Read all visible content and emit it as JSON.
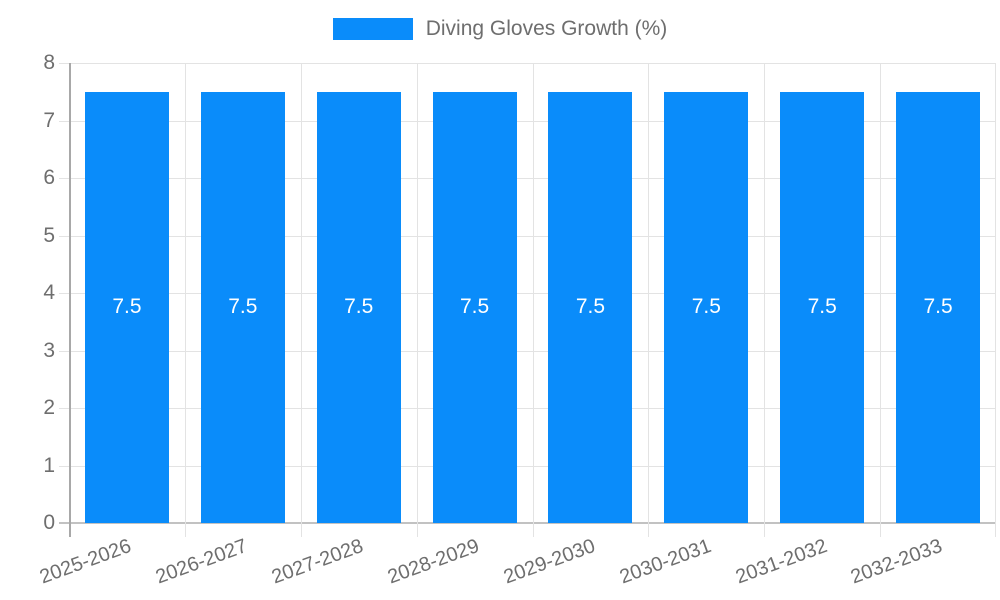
{
  "legend": {
    "label": "Diving Gloves Growth (%)",
    "swatch_color": "#0a8cfa"
  },
  "chart_data": {
    "type": "bar",
    "title": "Diving Gloves Growth (%)",
    "categories": [
      "2025-2026",
      "2026-2027",
      "2027-2028",
      "2028-2029",
      "2029-2030",
      "2030-2031",
      "2031-2032",
      "2032-2033"
    ],
    "values": [
      7.5,
      7.5,
      7.5,
      7.5,
      7.5,
      7.5,
      7.5,
      7.5
    ],
    "value_labels": [
      "7.5",
      "7.5",
      "7.5",
      "7.5",
      "7.5",
      "7.5",
      "7.5",
      "7.5"
    ],
    "xlabel": "",
    "ylabel": "",
    "ylim": [
      0,
      8
    ],
    "yticks": [
      0,
      1,
      2,
      3,
      4,
      5,
      6,
      7,
      8
    ],
    "grid": true,
    "legend_position": "top-center",
    "x_label_rotation_deg": -20,
    "bar_color": "#0a8cfa",
    "value_label_color": "#ffffff",
    "axis_text_color": "#6e6e6e",
    "gridline_color": "#e3e3e3"
  }
}
